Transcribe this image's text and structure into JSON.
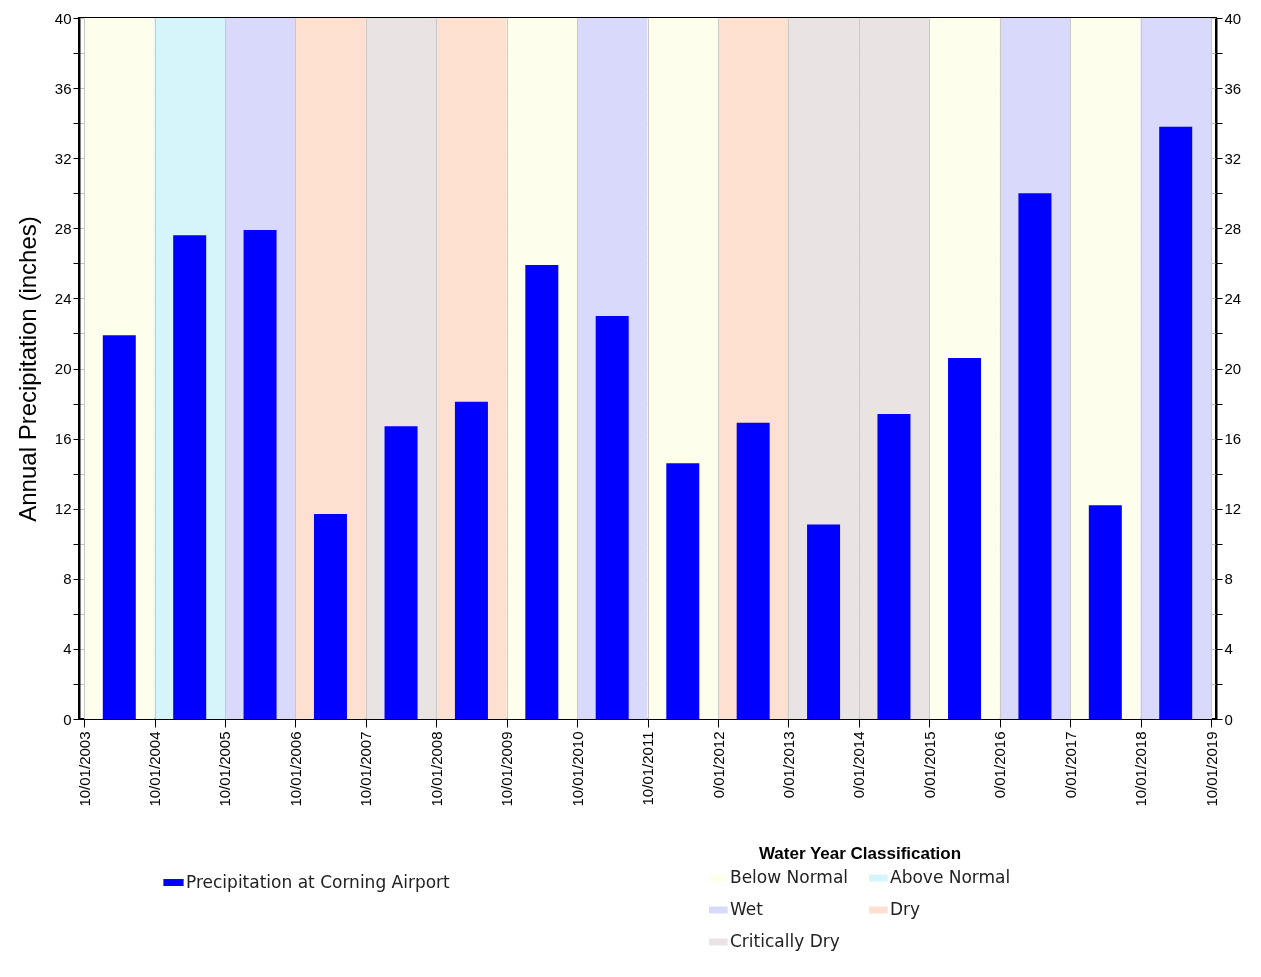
{
  "chart_data": {
    "type": "bar",
    "ylabel": "Annual Precipitation (inches)",
    "legend_title": "Water Year Classification",
    "x": [
      "2004-04-01",
      "2005-04-01",
      "2006-04-01",
      "2007-04-01",
      "2008-04-01",
      "2009-04-01",
      "2010-04-01",
      "2011-04-01",
      "2012-04-01",
      "2013-04-01",
      "2014-04-01",
      "2015-04-01",
      "2016-04-01",
      "2017-04-01",
      "2018-04-01",
      "2019-04-01"
    ],
    "series": [
      {
        "name": "Precipitation at Corning Airport",
        "color": "#0000ff",
        "values": [
          21.9,
          27.6,
          27.9,
          11.7,
          16.7,
          18.1,
          25.9,
          23.0,
          14.6,
          16.9,
          11.1,
          17.4,
          20.6,
          30.0,
          12.2,
          33.8
        ]
      }
    ],
    "xlim": [
      "2003-10-01",
      "2019-10-01"
    ],
    "xticks": [
      {
        "value": "2003-10-01",
        "label": "10/01/2003"
      },
      {
        "value": "2004-10-01",
        "label": "10/01/2004"
      },
      {
        "value": "2005-10-01",
        "label": "10/01/2005"
      },
      {
        "value": "2006-10-01",
        "label": "10/01/2006"
      },
      {
        "value": "2007-10-01",
        "label": "10/01/2007"
      },
      {
        "value": "2008-10-01",
        "label": "10/01/2008"
      },
      {
        "value": "2009-10-01",
        "label": "10/01/2009"
      },
      {
        "value": "2010-10-01",
        "label": "10/01/2010"
      },
      {
        "value": "2011-10-01",
        "label": "10/01/2011"
      },
      {
        "value": "2012-10-01",
        "label": "0/01/2012"
      },
      {
        "value": "2013-10-01",
        "label": "0/01/2013"
      },
      {
        "value": "2014-10-01",
        "label": "0/01/2014"
      },
      {
        "value": "2015-10-01",
        "label": "0/01/2015"
      },
      {
        "value": "2016-10-01",
        "label": "0/01/2016"
      },
      {
        "value": "2017-10-01",
        "label": "0/01/2017"
      },
      {
        "value": "2018-10-01",
        "label": "10/01/2018"
      },
      {
        "value": "2019-10-01",
        "label": "10/01/2019"
      }
    ],
    "ylim": [
      0,
      40
    ],
    "yticks": [
      0,
      {
        "value": 2,
        "label": null
      },
      4,
      {
        "value": 6,
        "label": null
      },
      8,
      {
        "value": 10,
        "label": null
      },
      12,
      {
        "value": 14,
        "label": null
      },
      16,
      {
        "value": 18,
        "label": null
      },
      20,
      {
        "value": 22,
        "label": null
      },
      24,
      {
        "value": 26,
        "label": null
      },
      28,
      {
        "value": 30,
        "label": null
      },
      32,
      {
        "value": 34,
        "label": null
      },
      36,
      {
        "value": 38,
        "label": null
      },
      40
    ],
    "y2lim": [
      0,
      40
    ],
    "y2ticks": [
      0,
      {
        "value": 2,
        "label": null
      },
      4,
      {
        "value": 6,
        "label": null
      },
      8,
      {
        "value": 10,
        "label": null
      },
      12,
      {
        "value": 14,
        "label": null
      },
      16,
      {
        "value": 18,
        "label": null
      },
      20,
      {
        "value": 22,
        "label": null
      },
      24,
      {
        "value": 26,
        "label": null
      },
      28,
      {
        "value": 30,
        "label": null
      },
      32,
      {
        "value": 34,
        "label": null
      },
      36,
      {
        "value": 38,
        "label": null
      },
      40
    ],
    "bands": [
      {
        "axis": "x",
        "from": "2003-10-01",
        "to": "2004-10-01",
        "label": "Below Normal",
        "color": "#fefeec"
      },
      {
        "axis": "x",
        "from": "2004-10-01",
        "to": "2005-10-01",
        "label": "Above Normal",
        "color": "#d5f5fb"
      },
      {
        "axis": "x",
        "from": "2005-10-01",
        "to": "2006-10-01",
        "label": "Wet",
        "color": "#d9d9fb"
      },
      {
        "axis": "x",
        "from": "2006-10-01",
        "to": "2007-10-01",
        "label": "Dry",
        "color": "#fde0cf"
      },
      {
        "axis": "x",
        "from": "2007-10-01",
        "to": "2008-10-01",
        "label": "Critically Dry",
        "color": "#e9e3e3"
      },
      {
        "axis": "x",
        "from": "2008-10-01",
        "to": "2009-10-01",
        "color": "#fde0cf"
      },
      {
        "axis": "x",
        "from": "2009-10-01",
        "to": "2010-10-01",
        "color": "#fefeec"
      },
      {
        "axis": "x",
        "from": "2010-10-01",
        "to": "2011-10-01",
        "color": "#d9d9fb"
      },
      {
        "axis": "x",
        "from": "2011-10-01",
        "to": "2012-10-01",
        "color": "#fefeec"
      },
      {
        "axis": "x",
        "from": "2012-10-01",
        "to": "2013-10-01",
        "color": "#fde0cf"
      },
      {
        "axis": "x",
        "from": "2013-10-01",
        "to": "2014-10-01",
        "color": "#e9e3e3"
      },
      {
        "axis": "x",
        "from": "2014-10-01",
        "to": "2015-10-01",
        "color": "#e9e3e3"
      },
      {
        "axis": "x",
        "from": "2015-10-01",
        "to": "2016-10-01",
        "color": "#fefeec"
      },
      {
        "axis": "x",
        "from": "2016-10-01",
        "to": "2017-10-01",
        "color": "#d9d9fb"
      },
      {
        "axis": "x",
        "from": "2017-10-01",
        "to": "2018-10-01",
        "color": "#fefeec"
      },
      {
        "axis": "x",
        "from": "2018-10-01",
        "to": "2019-10-01",
        "color": "#d9d9fb"
      }
    ],
    "grid": true,
    "legend": "bottom"
  }
}
